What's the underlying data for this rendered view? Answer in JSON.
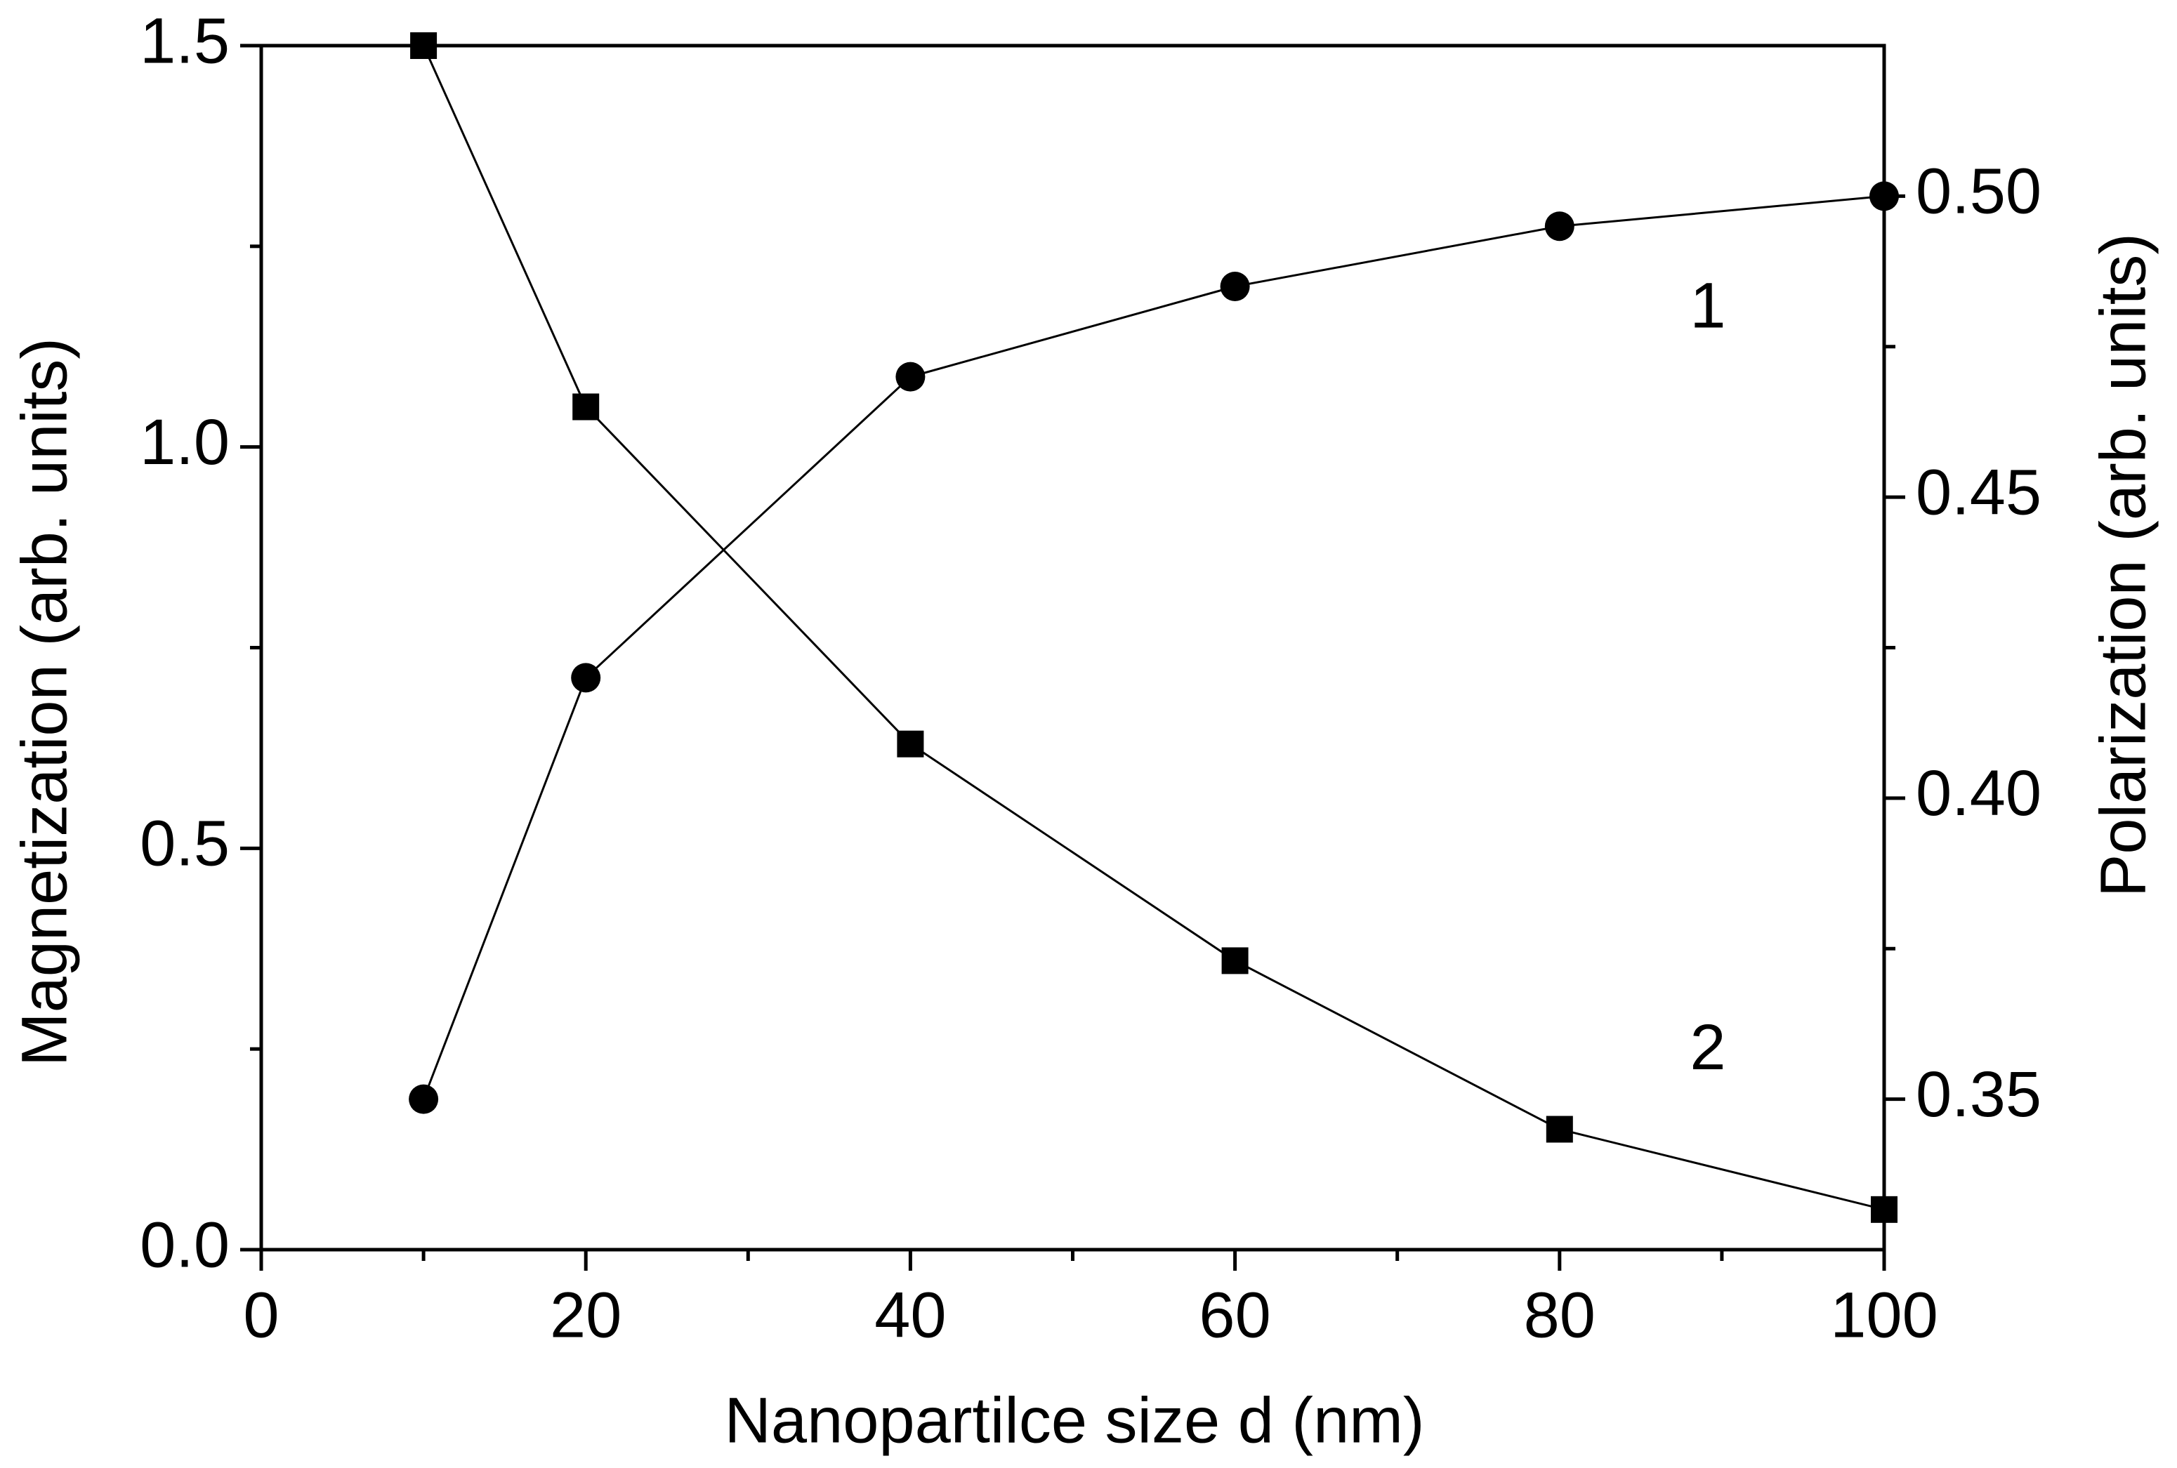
{
  "chart_data": {
    "type": "line",
    "x_label": "Nanopartilce size d (nm)",
    "y_label": "Magnetization (arb. units)",
    "y2_label": "Polarization (arb. units)",
    "x": [
      10,
      20,
      40,
      60,
      80,
      100
    ],
    "series": [
      {
        "name": "1",
        "color": "#000000",
        "marker": "circle",
        "axis": "y2",
        "values": [
          0.35,
          0.42,
          0.47,
          0.485,
          0.495,
          0.5
        ]
      },
      {
        "name": "2",
        "color": "#000000",
        "marker": "square",
        "axis": "y",
        "values": [
          1.5,
          1.05,
          0.63,
          0.36,
          0.15,
          0.05
        ]
      }
    ],
    "xlim": [
      0,
      100
    ],
    "xticks": [
      0,
      20,
      40,
      60,
      80,
      100
    ],
    "ylim": [
      0,
      1.5
    ],
    "yticks": [
      {
        "value": 0,
        "label": "0.0"
      },
      0.5,
      {
        "value": 1,
        "label": "1.0"
      },
      1.5
    ],
    "y2lim": [
      0.325,
      0.525
    ],
    "y2ticks": [
      0.35,
      {
        "value": 0.4,
        "label": "0.40"
      },
      0.45,
      {
        "value": 0.5,
        "label": "0.50"
      }
    ],
    "grid": false
  }
}
